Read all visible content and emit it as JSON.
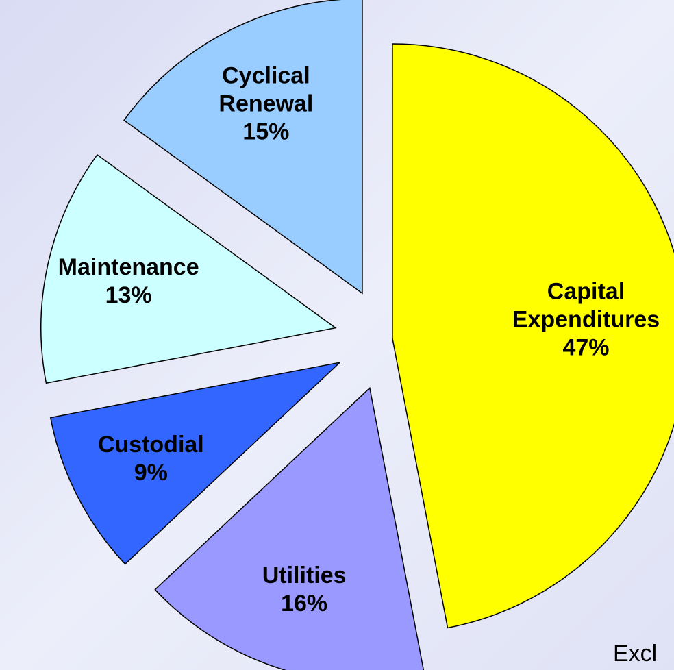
{
  "chart_data": {
    "type": "pie",
    "categories": [
      "Capital Expenditures",
      "Utilities",
      "Custodial",
      "Maintenance",
      "Cyclical Renewal"
    ],
    "values": [
      47,
      16,
      9,
      13,
      15
    ],
    "value_labels": [
      "47%",
      "16%",
      "9%",
      "13%",
      "15%"
    ],
    "colors": [
      "#ffff00",
      "#9999ff",
      "#3366ff",
      "#ccffff",
      "#99ccff"
    ],
    "annotations": [
      "Excl"
    ]
  }
}
